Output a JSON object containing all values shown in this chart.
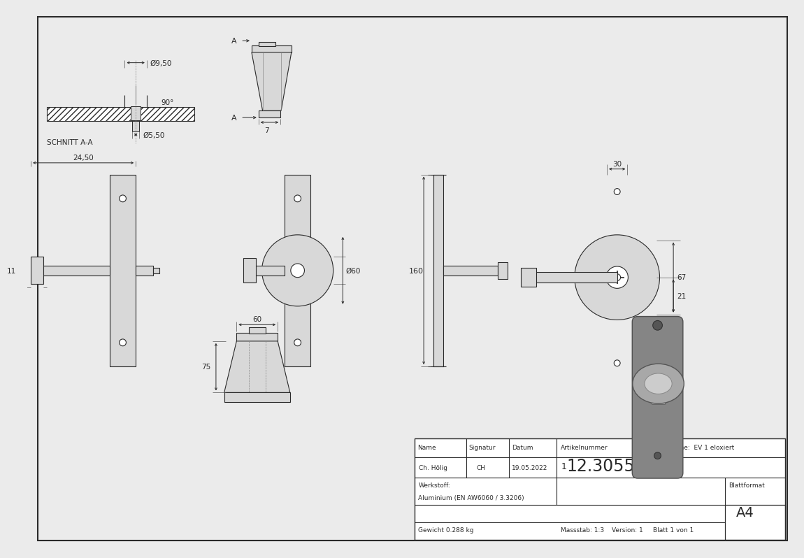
{
  "bg_color": "#ebebeb",
  "line_color": "#2a2a2a",
  "draw_color": "#2a2a2a",
  "fill_light": "#d8d8d8",
  "fill_white": "#ffffff",
  "fill_mid": "#b0b0b0",
  "fill_dark": "#888888",
  "dim_annotations": {
    "phi_9_50": "Ø9,50",
    "phi_5_50": "Ø5,50",
    "phi_60": "Ø60",
    "deg_90": "90°",
    "schnitt_aa": "SCHNITT A-A",
    "dim_7": "7",
    "dim_11": "11",
    "dim_24_50": "24,50",
    "dim_160": "160",
    "dim_60": "60",
    "dim_75": "75",
    "dim_30": "30",
    "dim_67": "67",
    "dim_21": "21",
    "label_A": "A"
  },
  "title": {
    "name_label": "Name",
    "sig_label": "Signatur",
    "dat_label": "Datum",
    "art_label": "Artikelnummer",
    "oberf_label": "Oberfläche:  EV 1 eloxiert",
    "name_val": "Ch. Hölig",
    "sig_val": "CH",
    "dat_val": "19.05.2022",
    "art_num_small": "1",
    "art_num_large": "12.3055.6",
    "werk_label": "Werkstoff:",
    "werk_val": "Aluminium (EN AW6060 / 3.3206)",
    "blattformat_label": "Blattformat",
    "blattformat_val": "A4",
    "gewicht": "Gewicht 0.288 kg",
    "massstab": "Massstab: 1:3",
    "version": "Version: 1",
    "blatt": "Blatt 1 von 1"
  }
}
